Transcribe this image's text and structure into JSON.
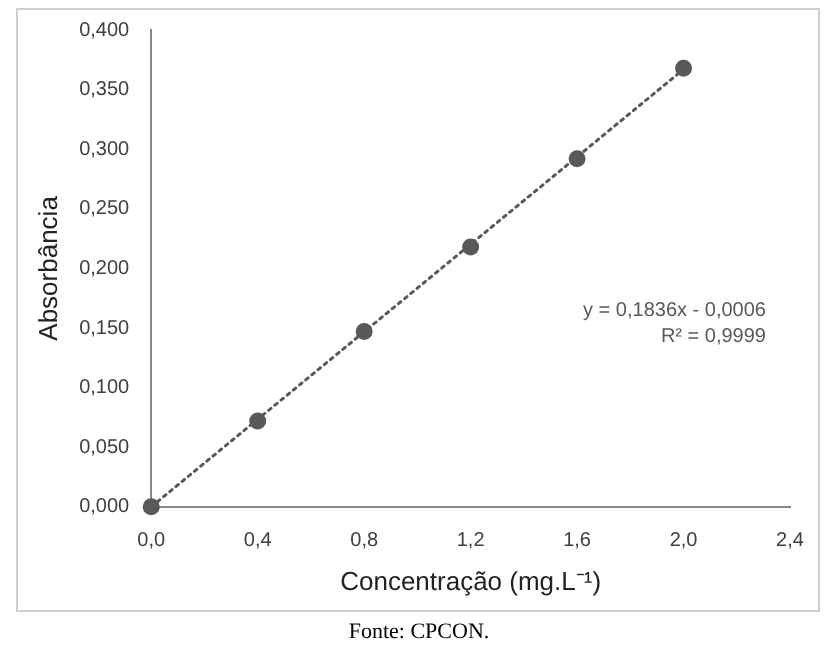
{
  "chart_data": {
    "type": "scatter",
    "xlabel": "Concentração (mg.L⁻¹)",
    "ylabel": "Absorbância",
    "series": [
      {
        "type": "scatter",
        "color": "#595959",
        "x": [
          0,
          0.4,
          0.8,
          1.2,
          1.6,
          2.0
        ],
        "values": [
          0,
          0.072,
          0.147,
          0.218,
          0.292,
          0.368
        ]
      },
      {
        "type": "line",
        "color": "#595959",
        "line_style": "dotted",
        "marker": "none",
        "x": [
          0,
          2.0
        ],
        "values": [
          0,
          0.367
        ]
      }
    ],
    "xlim": [
      0,
      2.4
    ],
    "xticks": [
      {
        "value": 0,
        "label": "0,0"
      },
      {
        "value": 0.4,
        "label": "0,4"
      },
      {
        "value": 0.8,
        "label": "0,8"
      },
      {
        "value": 1.2,
        "label": "1,2"
      },
      {
        "value": 1.6,
        "label": "1,6"
      },
      {
        "value": 2.0,
        "label": "2,0"
      },
      {
        "value": 2.4,
        "label": "2,4"
      }
    ],
    "ylim": [
      0,
      0.4
    ],
    "yticks": [
      {
        "value": 0,
        "label": "0,000"
      },
      {
        "value": 0.05,
        "label": "0,050"
      },
      {
        "value": 0.1,
        "label": "0,100"
      },
      {
        "value": 0.15,
        "label": "0,150"
      },
      {
        "value": 0.2,
        "label": "0,200"
      },
      {
        "value": 0.25,
        "label": "0,250"
      },
      {
        "value": 0.3,
        "label": "0,300"
      },
      {
        "value": 0.35,
        "label": "0,350"
      },
      {
        "value": 0.4,
        "label": "0,400"
      }
    ],
    "grid": false,
    "legend": false,
    "marker": "circle",
    "annotations": [
      "y = 0,1836x - 0,0006",
      "R² = 0,9999",
      "Fonte: CPCON."
    ]
  }
}
